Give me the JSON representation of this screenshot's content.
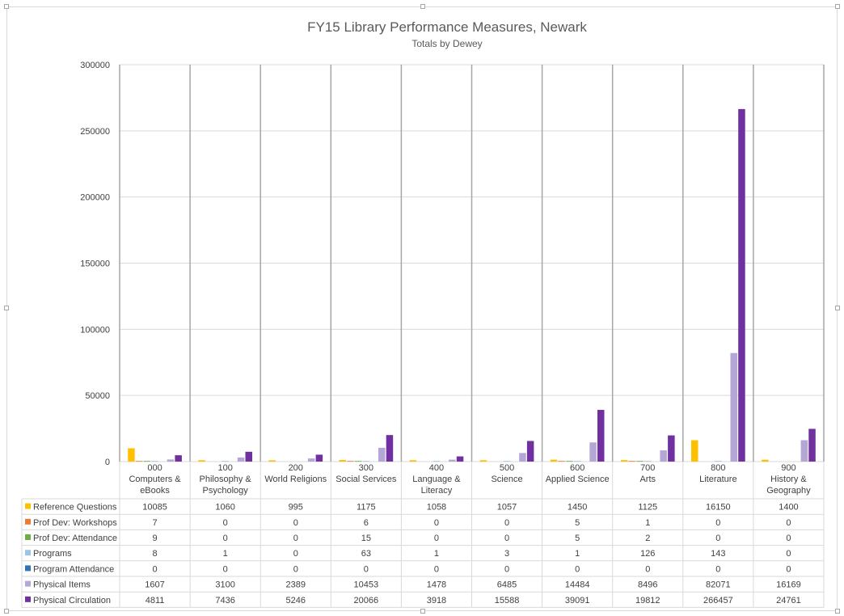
{
  "chart_data": {
    "type": "bar",
    "title": "FY15 Library Performance Measures, Newark",
    "subtitle": "Totals by Dewey",
    "ylim": [
      0,
      300000
    ],
    "yticks": [
      0,
      50000,
      100000,
      150000,
      200000,
      250000,
      300000
    ],
    "grid": true,
    "legend": "data-table",
    "categories": [
      [
        "000",
        "Computers &",
        "eBooks"
      ],
      [
        "100",
        "Philosophy &",
        "Psychology"
      ],
      [
        "200",
        "World Religions"
      ],
      [
        "300",
        "Social Services"
      ],
      [
        "400",
        "Language &",
        "Literacy"
      ],
      [
        "500",
        "Science"
      ],
      [
        "600",
        "Applied Science"
      ],
      [
        "700",
        "Arts"
      ],
      [
        "800",
        "Literature"
      ],
      [
        "900",
        "History &",
        "Geography"
      ]
    ],
    "series": [
      {
        "name": "Reference Questions",
        "color": "#ffc000",
        "values": [
          10085,
          1060,
          995,
          1175,
          1058,
          1057,
          1450,
          1125,
          16150,
          1400
        ]
      },
      {
        "name": "Prof Dev: Workshops",
        "color": "#ed7d31",
        "values": [
          7,
          0,
          0,
          6,
          0,
          0,
          5,
          1,
          0,
          0
        ]
      },
      {
        "name": "Prof Dev: Attendance",
        "color": "#70ad47",
        "values": [
          9,
          0,
          0,
          15,
          0,
          0,
          5,
          2,
          0,
          0
        ]
      },
      {
        "name": "Programs",
        "color": "#9dc3e6",
        "values": [
          8,
          1,
          0,
          63,
          1,
          3,
          1,
          126,
          143,
          0
        ]
      },
      {
        "name": "Program Attendance",
        "color": "#2e75b6",
        "values": [
          0,
          0,
          0,
          0,
          0,
          0,
          0,
          0,
          0,
          0
        ]
      },
      {
        "name": "Physical Items",
        "color": "#b4a7d6",
        "values": [
          1607,
          3100,
          2389,
          10453,
          1478,
          6485,
          14484,
          8496,
          82071,
          16169
        ]
      },
      {
        "name": "Physical Circulation",
        "color": "#7030a0",
        "values": [
          4811,
          7436,
          5246,
          20066,
          3918,
          15588,
          39091,
          19812,
          266457,
          24761
        ]
      }
    ]
  }
}
